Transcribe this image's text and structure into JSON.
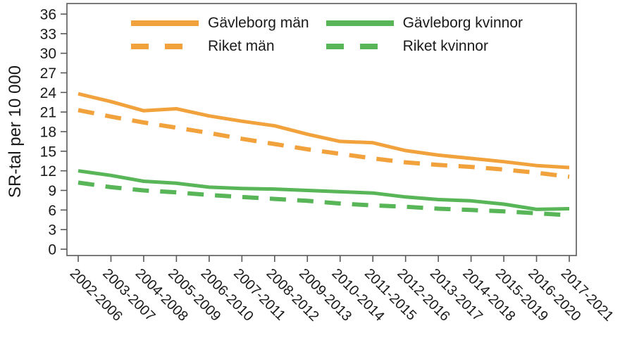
{
  "chart_data": {
    "type": "line",
    "title": "",
    "ylabel": "SR-tal per 10 000",
    "xlabel": "",
    "ylim": [
      0,
      36
    ],
    "ytick_step": 3,
    "grid": false,
    "legend_position": "top-inside",
    "categories": [
      "2002-2006",
      "2003-2007",
      "2004-2008",
      "2005-2009",
      "2006-2010",
      "2007-2011",
      "2008-2012",
      "2009-2013",
      "2010-2014",
      "2011-2015",
      "2012-2016",
      "2013-2017",
      "2014-2018",
      "2015-2019",
      "2016-2020",
      "2017-2021"
    ],
    "series": [
      {
        "name": "Gävleborg män",
        "style": "solid",
        "color": "#F2A23C",
        "values": [
          23.8,
          22.6,
          21.2,
          21.5,
          20.4,
          19.6,
          18.9,
          17.6,
          16.5,
          16.3,
          15.1,
          14.4,
          13.9,
          13.4,
          12.8,
          12.5
        ]
      },
      {
        "name": "Riket män",
        "style": "dashed",
        "color": "#F2A23C",
        "values": [
          21.3,
          20.3,
          19.4,
          18.6,
          17.8,
          16.9,
          16.1,
          15.3,
          14.6,
          13.9,
          13.3,
          12.9,
          12.6,
          12.2,
          11.7,
          11.1
        ]
      },
      {
        "name": "Gävleborg kvinnor",
        "style": "solid",
        "color": "#58B658",
        "values": [
          12.0,
          11.3,
          10.4,
          10.1,
          9.5,
          9.3,
          9.2,
          9.0,
          8.8,
          8.6,
          8.0,
          7.6,
          7.4,
          6.9,
          6.1,
          6.2
        ]
      },
      {
        "name": "Riket kvinnor",
        "style": "dashed",
        "color": "#58B658",
        "values": [
          10.2,
          9.5,
          9.0,
          8.7,
          8.3,
          8.0,
          7.7,
          7.4,
          7.0,
          6.7,
          6.5,
          6.2,
          6.0,
          5.8,
          5.5,
          5.2
        ]
      }
    ]
  },
  "colors": {
    "orange": "#F2A23C",
    "green": "#58B658",
    "frame": "#595959",
    "text": "#1a1a1a",
    "background": "#ffffff"
  }
}
